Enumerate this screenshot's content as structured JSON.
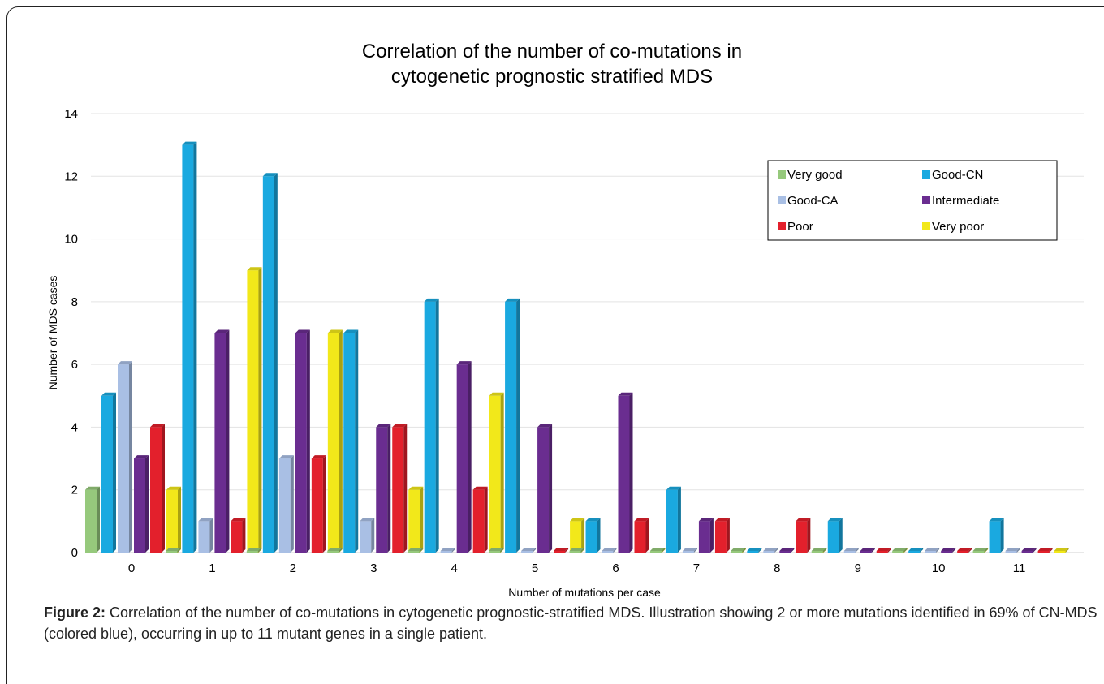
{
  "chart_data": {
    "type": "bar",
    "title_lines": [
      "Correlation of the number of co-mutations in",
      "cytogenetic prognostic stratified MDS"
    ],
    "xlabel": "Number of mutations per case",
    "ylabel": "Number of MDS cases",
    "ylim": [
      0,
      14
    ],
    "yticks": [
      0,
      2,
      4,
      6,
      8,
      10,
      12,
      14
    ],
    "grid": true,
    "legend_position": "top-right",
    "categories": [
      "0",
      "1",
      "2",
      "3",
      "4",
      "5",
      "6",
      "7",
      "8",
      "9",
      "10",
      "11"
    ],
    "series": [
      {
        "name": "Very good",
        "color": "#96c97c",
        "values": [
          2,
          0,
          0,
          0,
          0,
          0,
          0,
          0,
          0,
          0,
          0,
          0
        ]
      },
      {
        "name": "Good-CN",
        "color": "#1aa9e0",
        "values": [
          5,
          13,
          12,
          7,
          8,
          8,
          1,
          2,
          0,
          1,
          0,
          1
        ]
      },
      {
        "name": "Good-CA",
        "color": "#a9bfe4",
        "values": [
          6,
          1,
          3,
          1,
          0,
          0,
          0,
          0,
          0,
          0,
          0,
          0
        ]
      },
      {
        "name": "Intermediate",
        "color": "#6a2d90",
        "values": [
          3,
          7,
          7,
          4,
          6,
          4,
          5,
          1,
          0,
          0,
          0,
          0
        ]
      },
      {
        "name": "Poor",
        "color": "#e3202c",
        "values": [
          4,
          1,
          3,
          4,
          2,
          0,
          1,
          1,
          1,
          0,
          0,
          0
        ]
      },
      {
        "name": "Very poor",
        "color": "#f2e81a",
        "values": [
          2,
          9,
          7,
          2,
          5,
          1,
          0,
          0,
          0,
          0,
          0,
          0
        ]
      }
    ]
  },
  "caption": {
    "label": "Figure 2:",
    "text": " Correlation of the number of co-mutations in cytogenetic prognostic-stratified MDS. Illustration showing 2 or more mutations identified in 69% of CN-MDS (colored blue), occurring in up to 11 mutant genes in a single patient."
  }
}
